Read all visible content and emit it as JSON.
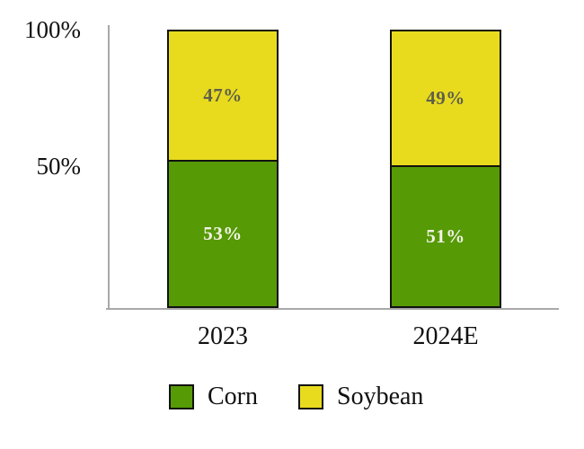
{
  "chart_data": {
    "type": "bar",
    "stacked": true,
    "title": "",
    "categories": [
      "2023",
      "2024E"
    ],
    "series": [
      {
        "name": "Corn",
        "values": [
          53,
          51
        ],
        "color": "#569a06",
        "label_color": "#f2f2e6"
      },
      {
        "name": "Soybean",
        "values": [
          47,
          49
        ],
        "color": "#e8db1e",
        "label_color": "#5f5f4a"
      }
    ],
    "value_suffix": "%",
    "yticks": [
      {
        "label": "100%",
        "value": 100
      },
      {
        "label": "50%",
        "value": 50
      }
    ],
    "ylim": [
      0,
      100
    ],
    "grid": false,
    "legend_position": "bottom",
    "axis_color": "#a8a8a8",
    "bar_border_color": "#111111"
  }
}
